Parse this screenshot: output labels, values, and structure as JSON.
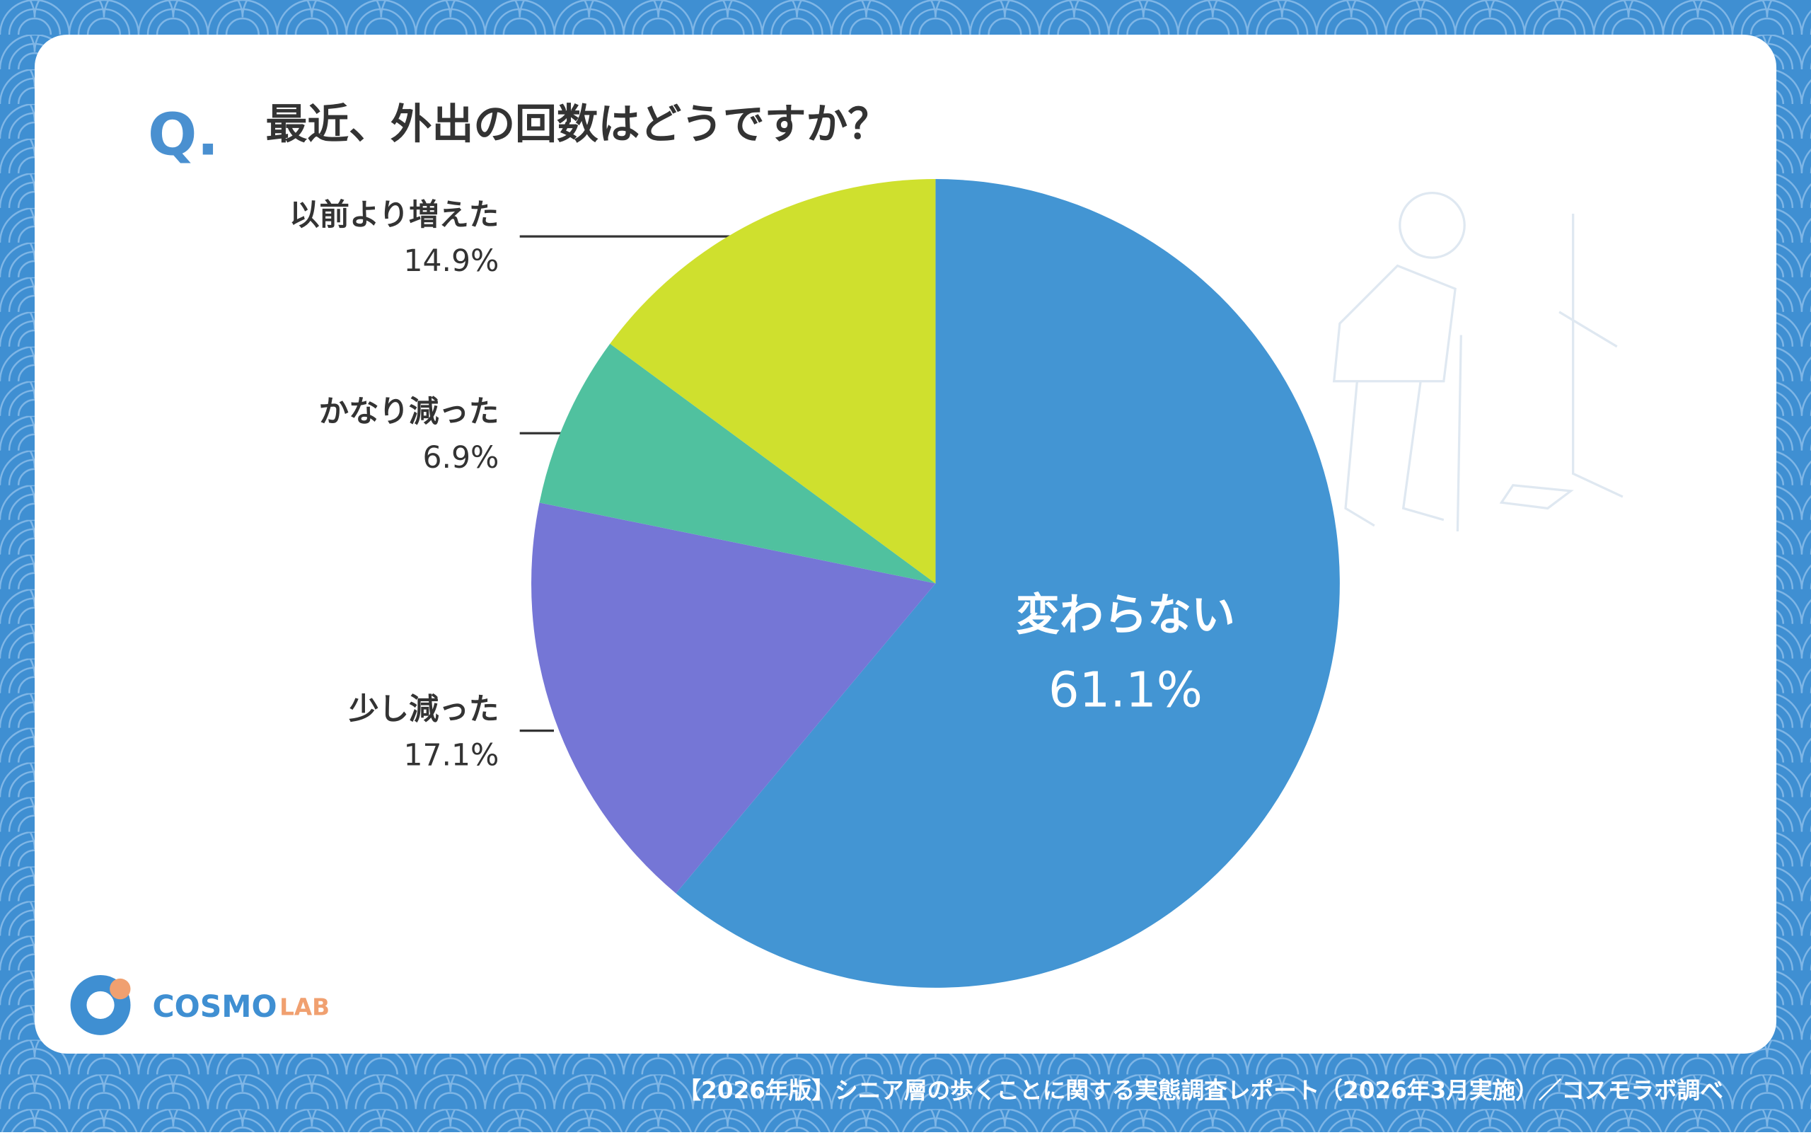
{
  "question_mark": "Q.",
  "logo": {
    "main": "COSMO",
    "sub": "LAB"
  },
  "footer": "【2026年版】シニア層の歩くことに関する実態調査レポート（2026年3月実施）／コスモラボ調べ",
  "chart_data": {
    "type": "pie",
    "title": "最近、外出の回数はどうですか？",
    "categories": [
      "変わらない",
      "少し減った",
      "かなり減った",
      "以前より増えた"
    ],
    "values": [
      61.1,
      17.1,
      6.9,
      14.9
    ],
    "value_labels": [
      "61.1%",
      "17.1%",
      "6.9%",
      "14.9%"
    ],
    "colors": [
      "#4395d3",
      "#7576d6",
      "#50c19f",
      "#cfe02e"
    ]
  }
}
